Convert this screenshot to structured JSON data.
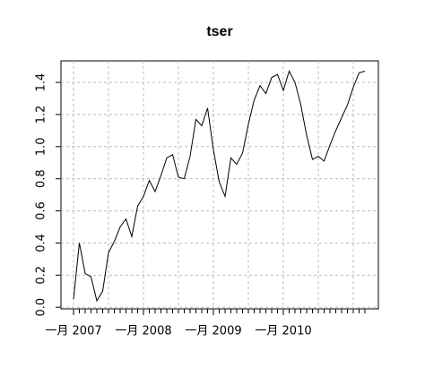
{
  "chart_data": {
    "type": "line",
    "title": "tser",
    "categories": [
      "一月 2007",
      null,
      null,
      null,
      null,
      null,
      null,
      null,
      null,
      null,
      null,
      null,
      "一月 2008",
      null,
      null,
      null,
      null,
      null,
      null,
      null,
      null,
      null,
      null,
      null,
      "一月 2009",
      null,
      null,
      null,
      null,
      null,
      null,
      null,
      null,
      null,
      null,
      null,
      "一月 2010",
      null,
      null,
      null,
      null,
      null,
      null,
      null,
      null,
      null,
      null,
      null,
      null,
      null,
      null
    ],
    "values": [
      0.05,
      0.4,
      0.21,
      0.19,
      0.04,
      0.1,
      0.34,
      0.41,
      0.5,
      0.55,
      0.44,
      0.63,
      0.69,
      0.79,
      0.72,
      0.82,
      0.93,
      0.95,
      0.81,
      0.8,
      0.94,
      1.17,
      1.13,
      1.24,
      0.98,
      0.78,
      0.69,
      0.93,
      0.89,
      0.96,
      1.14,
      1.29,
      1.38,
      1.33,
      1.43,
      1.45,
      1.35,
      1.47,
      1.4,
      1.26,
      1.07,
      0.92,
      0.94,
      0.91,
      1.01,
      1.1,
      1.18,
      1.26,
      1.37,
      1.46,
      1.47
    ],
    "color": "#000000",
    "ylim": [
      -0.01,
      1.534
    ],
    "yticks": [
      {
        "value": 0,
        "label": "0.0"
      },
      0.2,
      0.4,
      0.6,
      0.8,
      {
        "value": 1,
        "label": "1.0"
      },
      1.2,
      1.4
    ],
    "grid": true
  }
}
